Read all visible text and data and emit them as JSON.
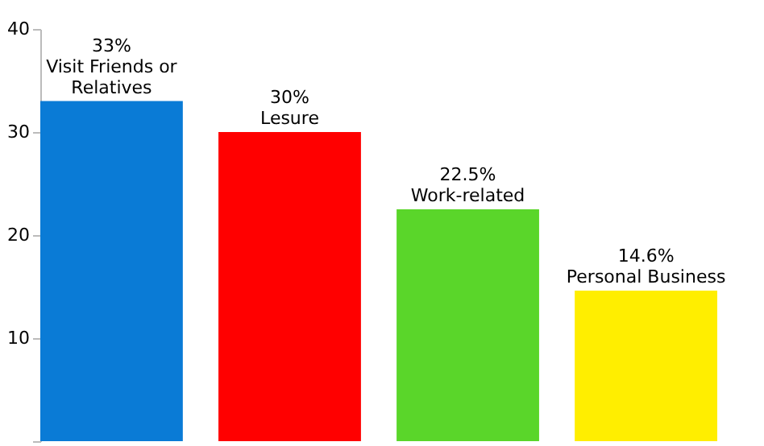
{
  "chart_data": {
    "type": "bar",
    "categories": [
      "Visit Friends or Relatives",
      "Lesure",
      "Work-related",
      "Personal Business"
    ],
    "values": [
      33,
      30,
      22.5,
      14.6
    ],
    "colors": [
      "#0a7bd6",
      "#ff0000",
      "#5ad62a",
      "#ffee00"
    ],
    "value_labels": [
      "33%",
      "30%",
      "22.5%",
      "14.6%"
    ],
    "ylim": [
      0,
      40
    ],
    "yticks": [
      {
        "value": 0,
        "label": null
      },
      10,
      20,
      30,
      40
    ],
    "grid": false,
    "tick_labels": "y"
  }
}
